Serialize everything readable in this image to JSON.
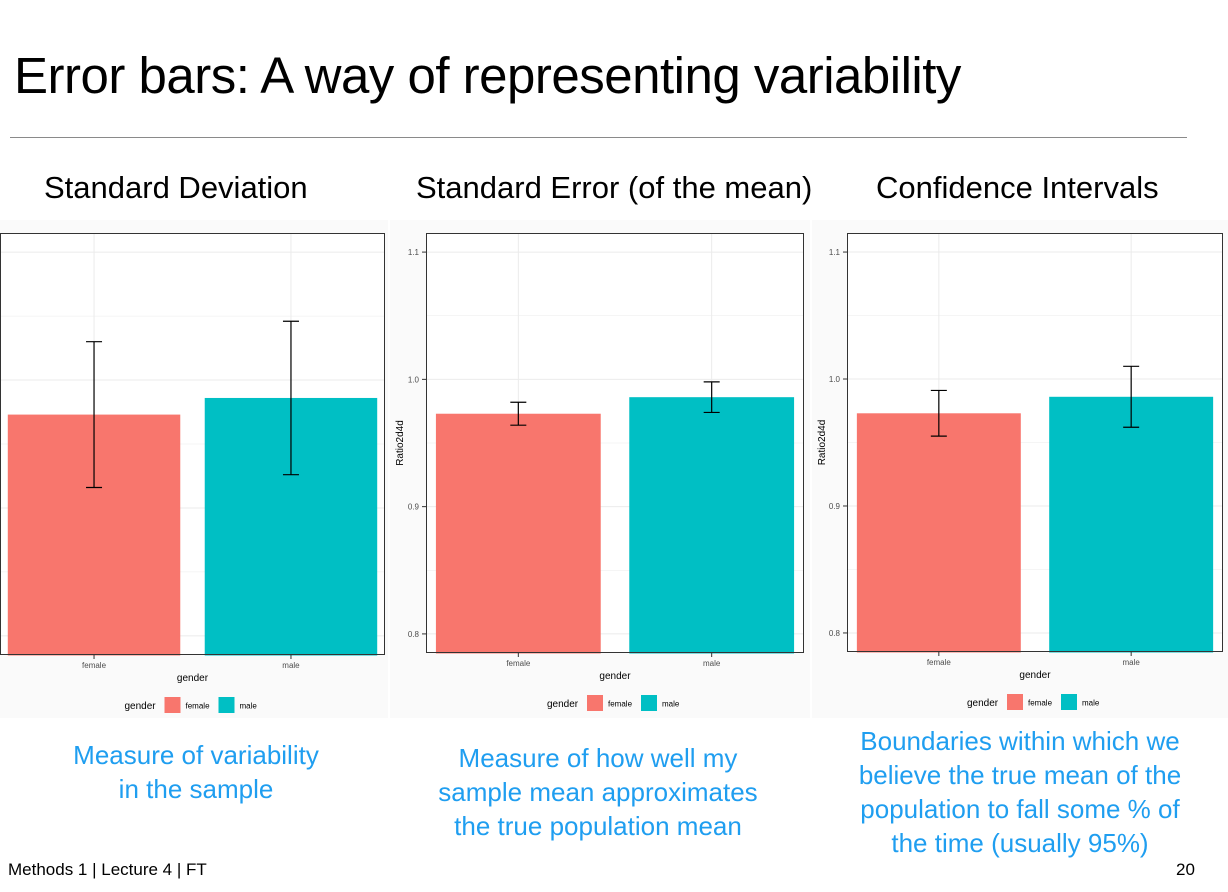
{
  "slide": {
    "title": "Error bars: A way of representing variability",
    "footer": "Methods 1 | Lecture 4 | FT",
    "page_number": "20"
  },
  "panels": [
    {
      "heading": "Standard Deviation",
      "caption_lines": [
        "Measure of variability",
        "in the sample"
      ]
    },
    {
      "heading": "Standard Error (of the mean)",
      "caption_lines": [
        "Measure of how well my",
        "sample mean approximates",
        "the true population mean"
      ]
    },
    {
      "heading": "Confidence Intervals",
      "caption_lines": [
        "Boundaries within which we",
        "believe the true mean of the",
        "population to fall some % of",
        "the time (usually 95%)"
      ]
    }
  ],
  "colors": {
    "female": "#F8766D",
    "male": "#00BFC4",
    "caption": "#1f9ef0"
  },
  "chart_data": [
    {
      "type": "bar",
      "categories": [
        "female",
        "male"
      ],
      "values": [
        0.973,
        0.986
      ],
      "error_low": [
        0.916,
        0.926
      ],
      "error_high": [
        1.03,
        1.046
      ],
      "xlabel": "gender",
      "ylabel": "",
      "yticks": [],
      "ylim": [
        0.785,
        1.115
      ],
      "legend": {
        "title": "gender",
        "entries": [
          "female",
          "male"
        ],
        "position": "bottom"
      },
      "grid": true
    },
    {
      "type": "bar",
      "categories": [
        "female",
        "male"
      ],
      "values": [
        0.973,
        0.986
      ],
      "error_low": [
        0.964,
        0.974
      ],
      "error_high": [
        0.982,
        0.998
      ],
      "xlabel": "gender",
      "ylabel": "Ratio2d4d",
      "yticks": [
        "0.8",
        "0.9",
        "1.0",
        "1.1"
      ],
      "ylim": [
        0.785,
        1.115
      ],
      "legend": {
        "title": "gender",
        "entries": [
          "female",
          "male"
        ],
        "position": "bottom"
      },
      "grid": true
    },
    {
      "type": "bar",
      "categories": [
        "female",
        "male"
      ],
      "values": [
        0.973,
        0.986
      ],
      "error_low": [
        0.955,
        0.962
      ],
      "error_high": [
        0.991,
        1.01
      ],
      "xlabel": "gender",
      "ylabel": "Ratio2d4d",
      "yticks": [
        "0.8",
        "0.9",
        "1.0",
        "1.1"
      ],
      "ylim": [
        0.785,
        1.115
      ],
      "legend": {
        "title": "gender",
        "entries": [
          "female",
          "male"
        ],
        "position": "bottom"
      },
      "grid": true
    }
  ]
}
